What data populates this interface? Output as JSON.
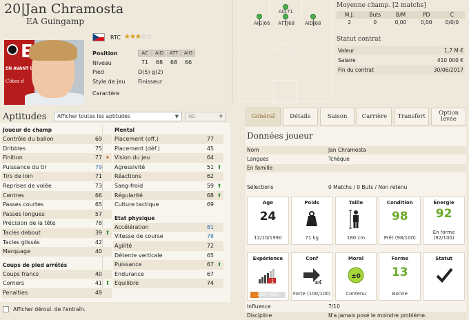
{
  "header": {
    "number": "20",
    "name": "Jan Chramosta",
    "club": "EA Guingamp"
  },
  "logo": {
    "letter": "E",
    "text_line1": "EN AVANT DE",
    "text_line2": "Côtes d"
  },
  "player": {
    "nationality_code": "RTC",
    "stars_on": "★★★",
    "stars_off": "☆☆",
    "position_label": "Position",
    "niveau_label": "Niveau",
    "positions": [
      "AC",
      "AID",
      "ATT",
      "AIG"
    ],
    "niveaux": [
      "71",
      "68",
      "68",
      "66"
    ],
    "pied_label": "Pied",
    "pied_value": "D(5) g(2)",
    "style_label": "Style de jeu",
    "style_value": "Finisseur",
    "caractere_label": "Caractère"
  },
  "pitch": {
    "dots": [
      {
        "label": "AC|71"
      },
      {
        "label": "AIG|66"
      },
      {
        "label": "ATT|68"
      },
      {
        "label": "AID|68"
      }
    ]
  },
  "moyenne": {
    "title": "Moyenne champ. [2 matchs]",
    "headers": [
      "M.J.",
      "Buts",
      "B/M",
      "PD",
      "C"
    ],
    "values": [
      "2",
      "0",
      "0,00",
      "0,00",
      "0/0/0"
    ]
  },
  "contrat": {
    "title": "Statut contrat",
    "rows": [
      {
        "label": "Valeur",
        "value": "1,7 M €"
      },
      {
        "label": "Salaire",
        "value": "410 000 €"
      },
      {
        "label": "Fin du contrat",
        "value": "30/06/2017"
      }
    ]
  },
  "aptitudes": {
    "title": "Aptitudes",
    "filter": "Afficher toutes les aptitudes",
    "nd": "ND",
    "left_sections": [
      {
        "title": "Joueur de champ",
        "rows": [
          {
            "name": "Contrôle du ballon",
            "value": "69",
            "ind": ""
          },
          {
            "name": "Dribbles",
            "value": "75",
            "ind": ""
          },
          {
            "name": "Finition",
            "value": "77",
            "ind": "warn"
          },
          {
            "name": "Puissance du tir",
            "value": "79",
            "ind": "",
            "blue": true
          },
          {
            "name": "Tirs de loin",
            "value": "71",
            "ind": ""
          },
          {
            "name": "Reprises de volée",
            "value": "73",
            "ind": ""
          },
          {
            "name": "Centres",
            "value": "66",
            "ind": ""
          },
          {
            "name": "Passes courtes",
            "value": "65",
            "ind": ""
          },
          {
            "name": "Passes longues",
            "value": "57",
            "ind": ""
          },
          {
            "name": "Précision de la tête",
            "value": "78",
            "ind": ""
          },
          {
            "name": "Tacles debout",
            "value": "39",
            "ind": "up"
          },
          {
            "name": "Tacles glissés",
            "value": "42",
            "ind": ""
          },
          {
            "name": "Marquage",
            "value": "40",
            "ind": ""
          }
        ]
      },
      {
        "title": "Coups de pied arrêtés",
        "rows": [
          {
            "name": "Coups francs",
            "value": "40",
            "ind": ""
          },
          {
            "name": "Corners",
            "value": "41",
            "ind": "up"
          },
          {
            "name": "Penalties",
            "value": "49",
            "ind": ""
          }
        ]
      }
    ],
    "right_sections": [
      {
        "title": "Mental",
        "rows": [
          {
            "name": "Placement (off.)",
            "value": "77",
            "ind": ""
          },
          {
            "name": "Placement (déf.)",
            "value": "45",
            "ind": ""
          },
          {
            "name": "Vision du jeu",
            "value": "64",
            "ind": ""
          },
          {
            "name": "Agressivité",
            "value": "51",
            "ind": "up"
          },
          {
            "name": "Réactions",
            "value": "62",
            "ind": ""
          },
          {
            "name": "Sang-froid",
            "value": "59",
            "ind": "up"
          },
          {
            "name": "Régularité",
            "value": "68",
            "ind": "up"
          },
          {
            "name": "Culture tactique",
            "value": "69",
            "ind": ""
          }
        ]
      },
      {
        "title": "Etat physique",
        "rows": [
          {
            "name": "Accélération",
            "value": "81",
            "ind": "",
            "blue": true
          },
          {
            "name": "Vitesse de course",
            "value": "78",
            "ind": "",
            "blue": true
          },
          {
            "name": "Agilité",
            "value": "72",
            "ind": ""
          },
          {
            "name": "Détente verticale",
            "value": "65",
            "ind": ""
          },
          {
            "name": "Puissance",
            "value": "67",
            "ind": "up"
          },
          {
            "name": "Endurance",
            "value": "67",
            "ind": ""
          },
          {
            "name": "Equilibre",
            "value": "74",
            "ind": ""
          }
        ]
      }
    ],
    "footer": "Afficher déroul. de l'entraîn."
  },
  "tabs": [
    "Général",
    "Détails",
    "Saison",
    "Carrière",
    "Transfert",
    "Option levée"
  ],
  "donnees": {
    "title": "Données joueur",
    "rows": [
      {
        "label": "Nom",
        "value": "Jan Chramosta"
      },
      {
        "label": "Langues",
        "value": "Tchèque"
      },
      {
        "label": "En famille",
        "value": ""
      }
    ],
    "selections_label": "Sélections",
    "selections_value": "0 Matchs / 0 Buts / Non retenu",
    "cards1": [
      {
        "title": "Age",
        "big": "24",
        "sub": "12/10/1990",
        "green": false
      },
      {
        "title": "Poids",
        "big": "",
        "sub": "71 kg",
        "green": false
      },
      {
        "title": "Taille",
        "big": "",
        "sub": "180 cm",
        "green": false
      },
      {
        "title": "Condition",
        "big": "98",
        "sub": "Prêt (98/100)",
        "green": true
      },
      {
        "title": "Énergie",
        "big": "92",
        "sub": "En forme (92/100)",
        "green": true
      }
    ],
    "cards2": [
      {
        "title": "Expérience",
        "big": "",
        "sub": "103 / 450",
        "green": false
      },
      {
        "title": "Conf",
        "big": "",
        "sub": "Forte (100/100)",
        "green": false
      },
      {
        "title": "Moral",
        "big": "",
        "sub": "Contenu",
        "green": false
      },
      {
        "title": "Forme",
        "big": "13",
        "sub": "Bonne",
        "green": true
      },
      {
        "title": "Statut",
        "big": "",
        "sub": "",
        "green": false
      }
    ],
    "exp_badge": "-1",
    "conf_badge": "±0",
    "moral_badge": "±0",
    "influence_label": "Influence",
    "influence_value": "7/10",
    "discipline_label": "Discipline",
    "discipline_value": "N'a jamais posé le moindre problème."
  }
}
